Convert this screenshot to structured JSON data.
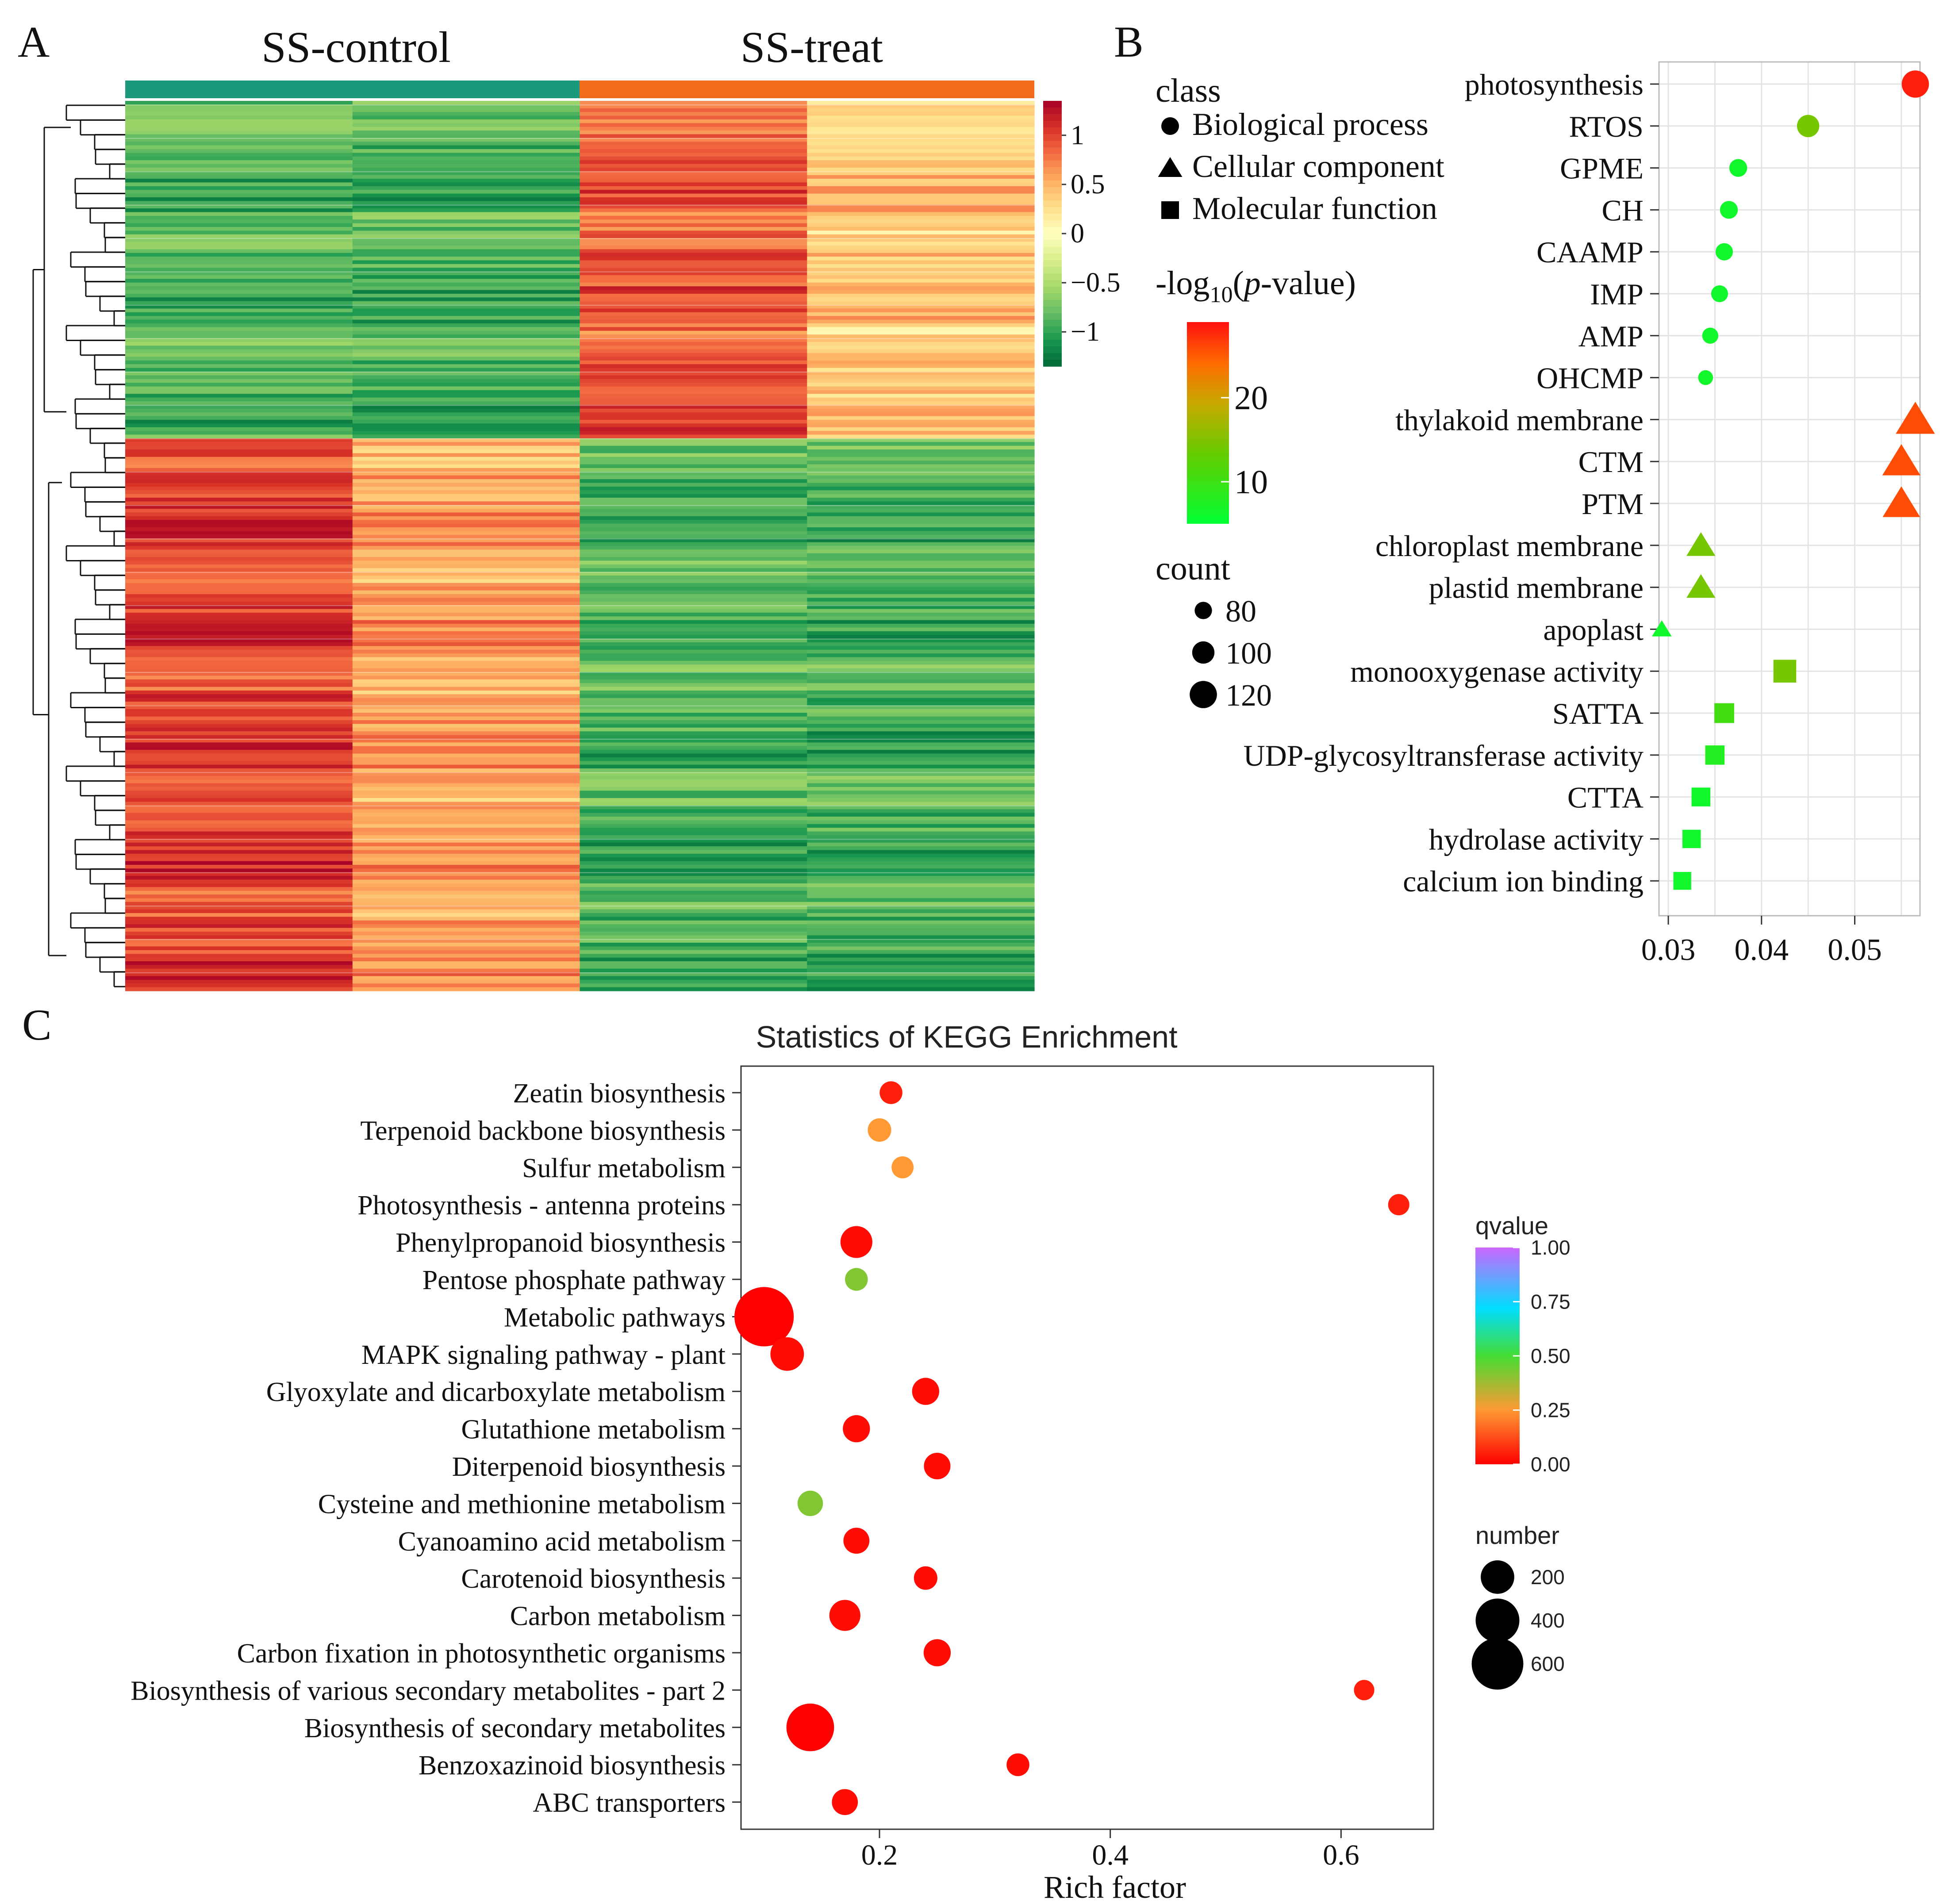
{
  "panel_labels": {
    "a": "A",
    "b": "B",
    "c": "C"
  },
  "chart_data": [
    {
      "type": "heatmap",
      "column_groups": [
        "SS-control",
        "SS-treat"
      ],
      "group_colors": [
        "#1a9a7a",
        "#f26a1b"
      ],
      "columns": 4,
      "colorbar": {
        "ticks": [
          "1",
          "0.5",
          "0",
          "−0.5",
          "−1"
        ],
        "tick_values": [
          1,
          0.5,
          0,
          -0.5,
          -1
        ],
        "range": [
          -1.35,
          1.35
        ],
        "colors": [
          "#006837",
          "#1a9850",
          "#66bd63",
          "#a6d96a",
          "#d9ef8b",
          "#ffffbf",
          "#fee08b",
          "#fdae61",
          "#f46d43",
          "#d73027",
          "#a50026"
        ]
      },
      "cluster_1_rows": 0.38,
      "cluster_1_values": [
        -0.9,
        -0.9,
        0.9,
        0.4
      ],
      "cluster_2_values": [
        1.0,
        0.6,
        -0.9,
        -0.9
      ]
    },
    {
      "type": "scatter",
      "legend_class_title": "class",
      "classes": [
        {
          "name": "Biological process",
          "shape": "circle"
        },
        {
          "name": "Cellular component",
          "shape": "triangle"
        },
        {
          "name": "Molecular function",
          "shape": "square"
        }
      ],
      "color_title_prefix": "-log",
      "color_title_sub": "10",
      "color_title_open": "(",
      "color_title_italic": "p",
      "color_title_suffix": "-value)",
      "color_ticks": [
        "20",
        "10"
      ],
      "color_tick_values": [
        20,
        10
      ],
      "color_range": [
        5,
        29
      ],
      "size_title": "count",
      "size_ticks": [
        "80",
        "100",
        "120"
      ],
      "size_tick_values": [
        80,
        100,
        120
      ],
      "xlim": [
        0.029,
        0.057
      ],
      "x_ticks": [
        "0.03",
        "0.04",
        "0.05"
      ],
      "x_tick_values": [
        0.03,
        0.04,
        0.05
      ],
      "terms": [
        {
          "label": "photosynthesis",
          "x": 0.0565,
          "class": "circle",
          "count": 120,
          "logp": 28
        },
        {
          "label": "RTOS",
          "x": 0.045,
          "class": "circle",
          "count": 100,
          "logp": 12
        },
        {
          "label": "GPME",
          "x": 0.0375,
          "class": "circle",
          "count": 82,
          "logp": 6
        },
        {
          "label": "CH",
          "x": 0.0365,
          "class": "circle",
          "count": 82,
          "logp": 6
        },
        {
          "label": "CAAMP",
          "x": 0.036,
          "class": "circle",
          "count": 80,
          "logp": 6
        },
        {
          "label": "IMP",
          "x": 0.0355,
          "class": "circle",
          "count": 78,
          "logp": 6
        },
        {
          "label": "AMP",
          "x": 0.0345,
          "class": "circle",
          "count": 75,
          "logp": 6
        },
        {
          "label": "OHCMP",
          "x": 0.034,
          "class": "circle",
          "count": 70,
          "logp": 6
        },
        {
          "label": "thylakoid membrane",
          "x": 0.0565,
          "class": "triangle",
          "count": 125,
          "logp": 25
        },
        {
          "label": "CTM",
          "x": 0.055,
          "class": "triangle",
          "count": 122,
          "logp": 25
        },
        {
          "label": "PTM",
          "x": 0.055,
          "class": "triangle",
          "count": 120,
          "logp": 25
        },
        {
          "label": "chloroplast membrane",
          "x": 0.0335,
          "class": "triangle",
          "count": 95,
          "logp": 12
        },
        {
          "label": "plastid membrane",
          "x": 0.0335,
          "class": "triangle",
          "count": 95,
          "logp": 12
        },
        {
          "label": "apoplast",
          "x": 0.0293,
          "class": "triangle",
          "count": 68,
          "logp": 6
        },
        {
          "label": "monooxygenase activity",
          "x": 0.0425,
          "class": "square",
          "count": 102,
          "logp": 12
        },
        {
          "label": "SATTA",
          "x": 0.036,
          "class": "square",
          "count": 90,
          "logp": 9
        },
        {
          "label": "UDP-glycosyltransferase activity",
          "x": 0.035,
          "class": "square",
          "count": 88,
          "logp": 7
        },
        {
          "label": "CTTA",
          "x": 0.0335,
          "class": "square",
          "count": 86,
          "logp": 6
        },
        {
          "label": "hydrolase activity",
          "x": 0.0325,
          "class": "square",
          "count": 84,
          "logp": 6
        },
        {
          "label": "calcium ion binding",
          "x": 0.0315,
          "class": "square",
          "count": 82,
          "logp": 6
        }
      ]
    },
    {
      "type": "scatter",
      "title": "Statistics of KEGG Enrichment",
      "xlabel": "Rich factor",
      "xlim": [
        0.08,
        0.68
      ],
      "x_ticks": [
        "0.2",
        "0.4",
        "0.6"
      ],
      "x_tick_values": [
        0.2,
        0.4,
        0.6
      ],
      "color_title": "qvalue",
      "color_ticks": [
        "1.00",
        "0.75",
        "0.50",
        "0.25",
        "0.00"
      ],
      "color_tick_values": [
        1.0,
        0.75,
        0.5,
        0.25,
        0.0
      ],
      "size_title": "number",
      "size_ticks": [
        "200",
        "400",
        "600"
      ],
      "size_tick_values": [
        200,
        400,
        600
      ],
      "pathways": [
        {
          "label": "Zeatin biosynthesis",
          "x": 0.21,
          "number": 45,
          "q": 0.05
        },
        {
          "label": "Terpenoid backbone biosynthesis",
          "x": 0.2,
          "number": 50,
          "q": 0.25
        },
        {
          "label": "Sulfur metabolism",
          "x": 0.22,
          "number": 40,
          "q": 0.25
        },
        {
          "label": "Photosynthesis - antenna proteins",
          "x": 0.65,
          "number": 35,
          "q": 0.05
        },
        {
          "label": "Phenylpropanoid biosynthesis",
          "x": 0.18,
          "number": 130,
          "q": 0.02
        },
        {
          "label": "Pentose phosphate pathway",
          "x": 0.18,
          "number": 45,
          "q": 0.42
        },
        {
          "label": "Metabolic pathways",
          "x": 0.1,
          "number": 650,
          "q": 0.0
        },
        {
          "label": "MAPK signaling pathway - plant",
          "x": 0.12,
          "number": 150,
          "q": 0.02
        },
        {
          "label": "Glyoxylate and dicarboxylate metabolism",
          "x": 0.24,
          "number": 80,
          "q": 0.02
        },
        {
          "label": "Glutathione metabolism",
          "x": 0.18,
          "number": 80,
          "q": 0.02
        },
        {
          "label": "Diterpenoid biosynthesis",
          "x": 0.25,
          "number": 75,
          "q": 0.02
        },
        {
          "label": "Cysteine and methionine metabolism",
          "x": 0.14,
          "number": 65,
          "q": 0.42
        },
        {
          "label": "Cyanoamino acid metabolism",
          "x": 0.18,
          "number": 70,
          "q": 0.02
        },
        {
          "label": "Carotenoid biosynthesis",
          "x": 0.24,
          "number": 50,
          "q": 0.02
        },
        {
          "label": "Carbon metabolism",
          "x": 0.17,
          "number": 120,
          "q": 0.02
        },
        {
          "label": "Carbon fixation in photosynthetic organisms",
          "x": 0.25,
          "number": 80,
          "q": 0.02
        },
        {
          "label": "Biosynthesis of various secondary metabolites - part 2",
          "x": 0.62,
          "number": 30,
          "q": 0.05
        },
        {
          "label": "Biosynthesis of secondary metabolites",
          "x": 0.14,
          "number": 380,
          "q": 0.0
        },
        {
          "label": "Benzoxazinoid biosynthesis",
          "x": 0.32,
          "number": 45,
          "q": 0.02
        },
        {
          "label": "ABC transporters",
          "x": 0.17,
          "number": 70,
          "q": 0.02
        }
      ]
    }
  ]
}
